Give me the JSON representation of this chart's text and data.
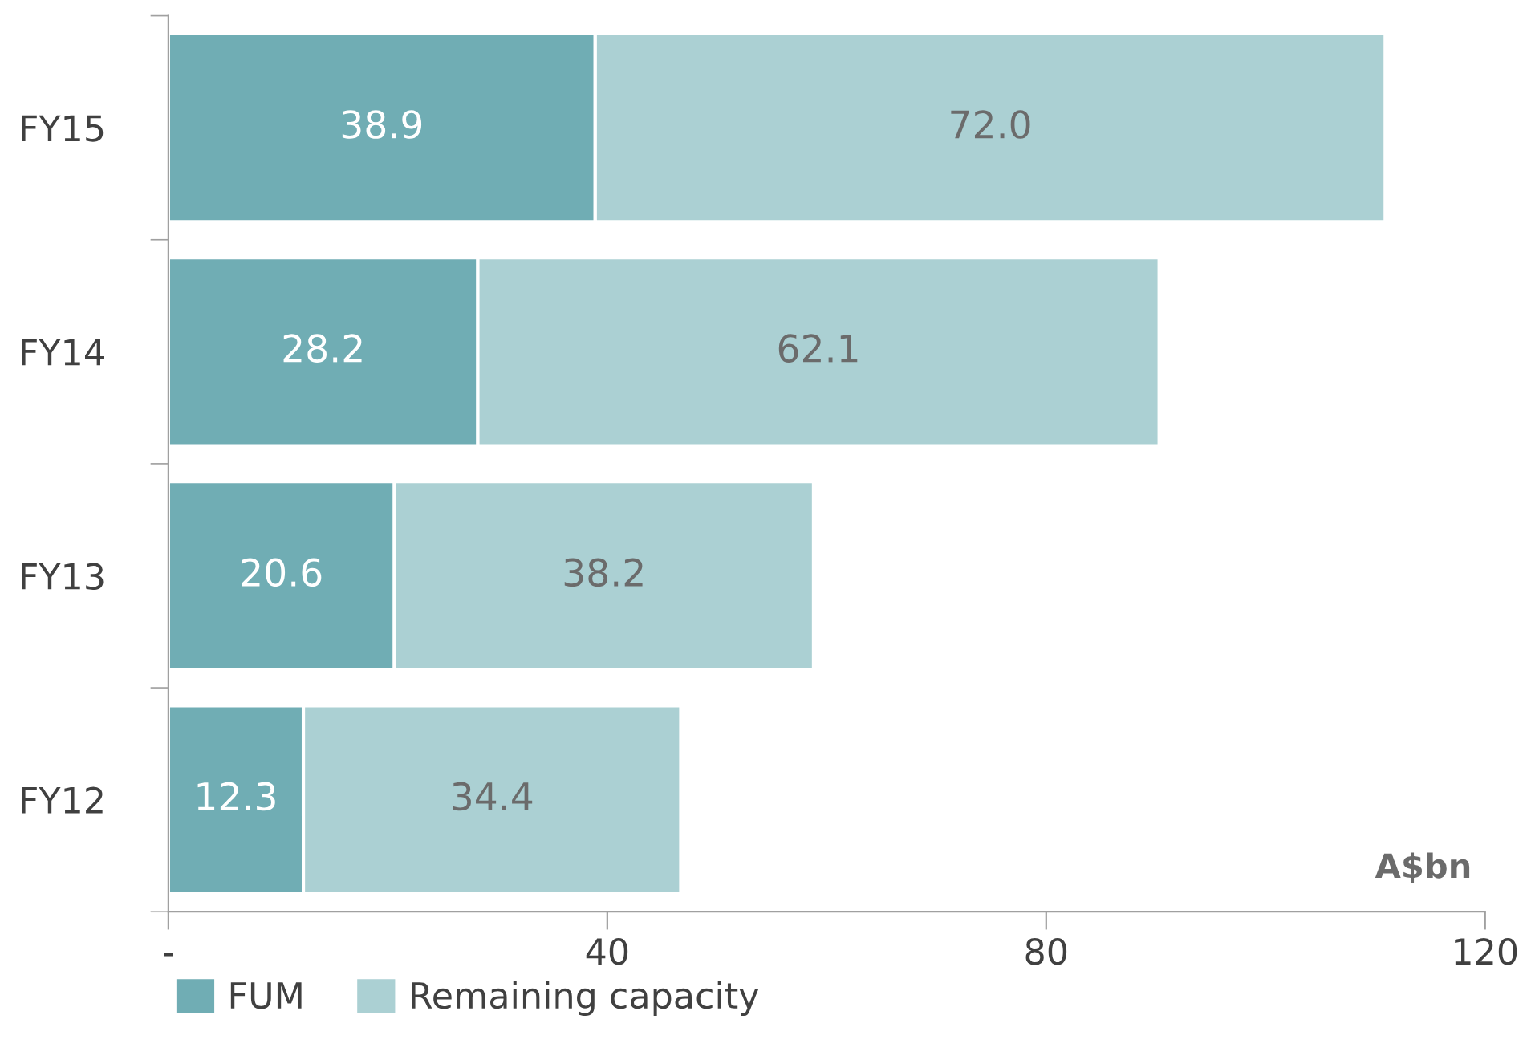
{
  "chart_data": {
    "type": "bar",
    "orientation": "horizontal",
    "stacked": true,
    "categories": [
      "FY15",
      "FY14",
      "FY13",
      "FY12"
    ],
    "series": [
      {
        "name": "FUM",
        "color": "#70adb4",
        "values": [
          38.9,
          28.2,
          20.6,
          12.3
        ],
        "value_labels": [
          "38.9",
          "28.2",
          "20.6",
          "12.3"
        ]
      },
      {
        "name": "Remaining capacity",
        "color": "#abd0d3",
        "values": [
          72.0,
          62.1,
          38.2,
          34.4
        ],
        "value_labels": [
          "72.0",
          "62.1",
          "38.2",
          "34.4"
        ]
      }
    ],
    "xlim": [
      0,
      120
    ],
    "xticks": [
      {
        "value": 0,
        "label": "-"
      },
      40,
      80,
      120
    ],
    "annotations": [
      "A$bn"
    ],
    "legend": "bottom left",
    "grid": false
  }
}
